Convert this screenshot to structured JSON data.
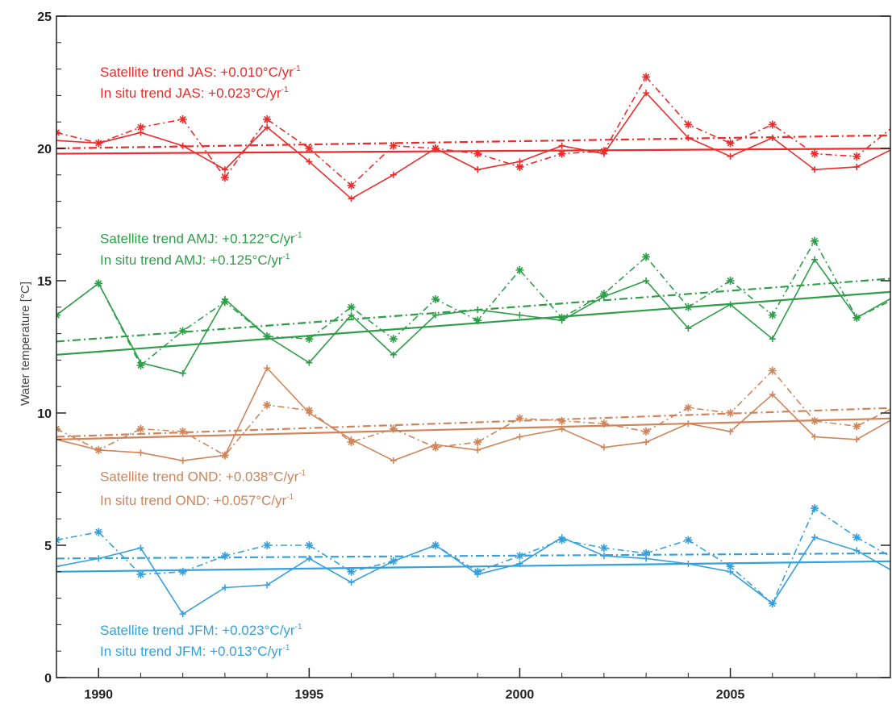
{
  "chart_data": {
    "type": "line",
    "title": "",
    "xlabel": "",
    "ylabel": "Water temperature [°C]",
    "xlim": [
      1989,
      2008.8
    ],
    "ylim": [
      0,
      25
    ],
    "xticks": [
      1990,
      1995,
      2000,
      2005
    ],
    "yticks": [
      0,
      5,
      10,
      15,
      20,
      25
    ],
    "grid": false,
    "legend": "none",
    "x": [
      1989,
      1990,
      1991,
      1992,
      1993,
      1994,
      1995,
      1996,
      1997,
      1998,
      1999,
      2000,
      2001,
      2002,
      2003,
      2004,
      2005,
      2006,
      2007,
      2008,
      2009
    ],
    "series": [
      {
        "id": "jas",
        "color": "#ee2b2b",
        "satellite": [
          20.3,
          20.2,
          20.6,
          20.1,
          19.2,
          20.8,
          19.5,
          18.1,
          19.0,
          20.0,
          19.2,
          19.5,
          20.1,
          19.8,
          22.1,
          20.4,
          19.7,
          20.4,
          19.2,
          19.3,
          20.1
        ],
        "in_situ": [
          20.6,
          20.2,
          20.8,
          21.1,
          18.9,
          21.1,
          20.0,
          18.6,
          20.1,
          20.0,
          19.8,
          19.3,
          19.8,
          19.9,
          22.7,
          20.9,
          20.2,
          20.9,
          19.8,
          19.7,
          21.0
        ],
        "satellite_trend": [
          19.8,
          20.0
        ],
        "in_situ_trend": [
          20.0,
          20.5
        ],
        "label_satellite": "Satellite trend JAS: +0.010°C/yr",
        "label_in_situ": "In situ trend JAS: +0.023°C/yr",
        "label_sup": "-1",
        "label_y": [
          22.9,
          22.1
        ]
      },
      {
        "id": "amj",
        "color": "#2e9e48",
        "satellite": [
          13.7,
          14.9,
          11.9,
          11.5,
          14.3,
          12.9,
          11.9,
          13.7,
          12.2,
          13.7,
          13.9,
          13.7,
          13.5,
          14.4,
          15.0,
          13.2,
          14.1,
          12.8,
          15.8,
          13.6,
          14.5
        ],
        "in_situ": [
          13.7,
          14.9,
          11.8,
          13.1,
          14.2,
          12.9,
          12.8,
          14.0,
          12.8,
          14.3,
          13.5,
          15.4,
          13.6,
          14.5,
          15.9,
          14.0,
          15.0,
          13.7,
          16.5,
          13.6,
          14.4
        ],
        "satellite_trend": [
          12.2,
          14.6
        ],
        "in_situ_trend": [
          12.7,
          15.1
        ],
        "label_satellite": "Satellite trend AMJ: +0.122°C/yr",
        "label_in_situ": "In situ trend AMJ: +0.125°C/yr",
        "label_sup": "-1",
        "label_y": [
          16.6,
          15.8
        ]
      },
      {
        "id": "ond",
        "color": "#d0845a",
        "satellite": [
          9.0,
          8.6,
          8.5,
          8.2,
          8.4,
          11.7,
          10.0,
          9.0,
          8.2,
          8.8,
          8.6,
          9.1,
          9.4,
          8.7,
          8.9,
          9.6,
          9.3,
          10.7,
          9.1,
          9.0,
          9.9
        ],
        "in_situ": [
          9.4,
          8.6,
          9.4,
          9.3,
          8.4,
          10.3,
          10.1,
          8.9,
          9.4,
          8.7,
          8.9,
          9.8,
          9.7,
          9.6,
          9.3,
          10.2,
          10.0,
          11.6,
          9.7,
          9.5,
          10.3
        ],
        "satellite_trend": [
          9.0,
          9.8
        ],
        "in_situ_trend": [
          9.1,
          10.2
        ],
        "label_satellite": "Satellite trend OND: +0.038°C/yr",
        "label_in_situ": "In situ trend OND: +0.057°C/yr",
        "label_sup": "-1",
        "label_y": [
          7.6,
          6.7
        ]
      },
      {
        "id": "jfm",
        "color": "#35a0dc",
        "satellite": [
          4.2,
          4.5,
          4.9,
          2.4,
          3.4,
          3.5,
          4.5,
          3.6,
          4.4,
          5.0,
          3.9,
          4.3,
          5.3,
          4.6,
          4.5,
          4.3,
          4.0,
          2.8,
          5.3,
          4.8,
          3.9
        ],
        "in_situ": [
          5.2,
          5.5,
          3.9,
          4.0,
          4.6,
          5.0,
          5.0,
          4.0,
          4.4,
          5.0,
          4.0,
          4.6,
          5.2,
          4.9,
          4.7,
          5.2,
          4.2,
          2.8,
          6.4,
          5.3,
          4.4
        ],
        "satellite_trend": [
          4.0,
          4.4
        ],
        "in_situ_trend": [
          4.5,
          4.7
        ],
        "label_satellite": "Satellite trend JFM: +0.023°C/yr",
        "label_in_situ": "In situ trend JFM: +0.013°C/yr",
        "label_sup": "-1",
        "label_y": [
          1.8,
          1.0
        ]
      }
    ]
  }
}
